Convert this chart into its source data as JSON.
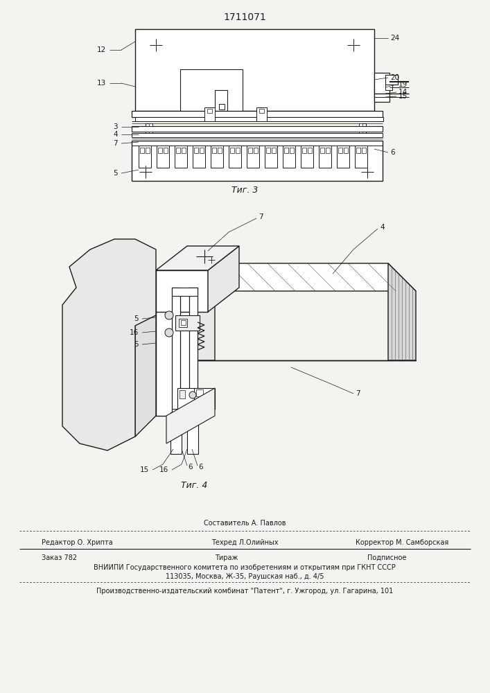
{
  "title": "1711071",
  "bg_color": "#f5f3f0",
  "fig3_label": "Τиг. 3",
  "fig4_label": "Τиг. 4",
  "footer_above_center": "Составитель А. Павлов",
  "footer_line1_left": "Редактор О. Хрипта",
  "footer_line1_center": "Техред Л.Олийных",
  "footer_line1_right": "Корректор М. Самборская",
  "footer_line2a": "Заказ 782",
  "footer_line2b": "Тираж",
  "footer_line2c": "Подписное",
  "footer_line3": "ВНИИПИ Государственного комитета по изобретениям и открытиям при ГКНТ СССР",
  "footer_line4": "113035, Москва, Ж-35, Раушская наб., д. 4/5",
  "footer_line5": "Производственно-издательский комбинат \"Патент\", г. Ужгород, ул. Гагарина, 101",
  "text_color": "#1a1a1a",
  "line_color": "#1a1a1a"
}
